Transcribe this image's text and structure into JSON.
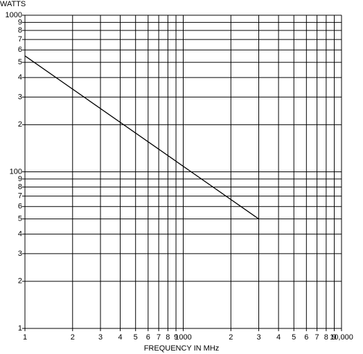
{
  "chart_data": {
    "type": "line",
    "y_label": "WATTS",
    "x_label": "FREQUENCY IN MHz",
    "x_scale": "log",
    "y_scale": "log",
    "grid": true,
    "xlim": [
      100,
      10000
    ],
    "xticks": [
      {
        "value": 100,
        "label": "1"
      },
      {
        "value": 200,
        "label": "2"
      },
      {
        "value": 300,
        "label": "3"
      },
      {
        "value": 400,
        "label": "4"
      },
      {
        "value": 500,
        "label": "5"
      },
      {
        "value": 600,
        "label": "6"
      },
      {
        "value": 700,
        "label": "7"
      },
      {
        "value": 800,
        "label": "8"
      },
      {
        "value": 900,
        "label": "9"
      },
      1000,
      {
        "value": 2000,
        "label": "2"
      },
      {
        "value": 3000,
        "label": "3"
      },
      {
        "value": 4000,
        "label": "4"
      },
      {
        "value": 5000,
        "label": "5"
      },
      {
        "value": 6000,
        "label": "6"
      },
      {
        "value": 7000,
        "label": "7"
      },
      {
        "value": 8000,
        "label": "8"
      },
      {
        "value": 9000,
        "label": "9"
      },
      {
        "value": 10000,
        "label": "10,000"
      }
    ],
    "ylim": [
      10,
      1000
    ],
    "yticks": [
      {
        "value": 10,
        "label": "1"
      },
      {
        "value": 20,
        "label": "2"
      },
      {
        "value": 30,
        "label": "3"
      },
      {
        "value": 40,
        "label": "4"
      },
      {
        "value": 50,
        "label": "5"
      },
      {
        "value": 60,
        "label": "6"
      },
      {
        "value": 70,
        "label": "7"
      },
      {
        "value": 80,
        "label": "8"
      },
      {
        "value": 90,
        "label": "9"
      },
      100,
      {
        "value": 200,
        "label": "2"
      },
      {
        "value": 300,
        "label": "3"
      },
      {
        "value": 400,
        "label": "4"
      },
      {
        "value": 500,
        "label": "5"
      },
      {
        "value": 600,
        "label": "6"
      },
      {
        "value": 700,
        "label": "7"
      },
      {
        "value": 800,
        "label": "8"
      },
      {
        "value": 900,
        "label": "9"
      },
      1000
    ],
    "series": [
      {
        "color": "#000000",
        "x": [
          100,
          3000
        ],
        "values": [
          550,
          50
        ]
      }
    ]
  }
}
